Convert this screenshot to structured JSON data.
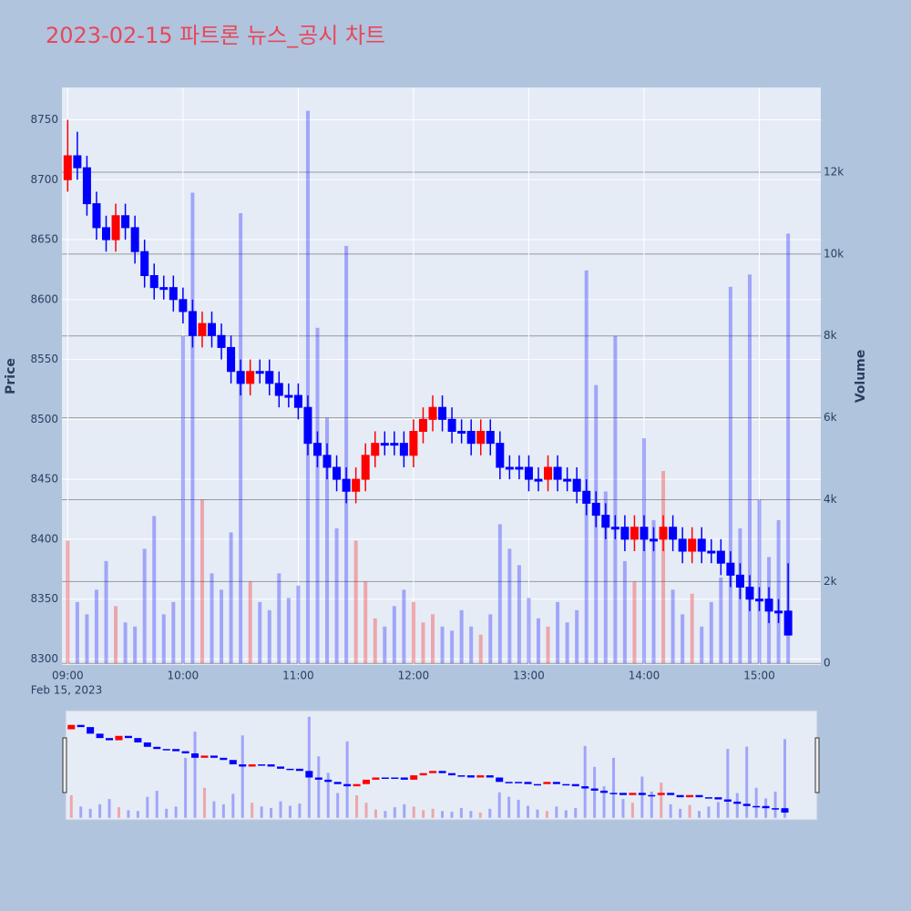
{
  "chart_data": {
    "type": "candlestick",
    "title": "2023-02-15 파트론 뉴스_공시 차트",
    "y_label": "Price",
    "y2_label": "Volume",
    "x_date_label": "Feb 15, 2023",
    "increasing_color": "#ff0000",
    "decreasing_color": "#0000ff",
    "x": [
      "09:00",
      "09:05",
      "09:10",
      "09:15",
      "09:20",
      "09:25",
      "09:30",
      "09:35",
      "09:40",
      "09:45",
      "09:50",
      "09:55",
      "10:00",
      "10:05",
      "10:10",
      "10:15",
      "10:20",
      "10:25",
      "10:30",
      "10:35",
      "10:40",
      "10:45",
      "10:50",
      "10:55",
      "11:00",
      "11:05",
      "11:10",
      "11:15",
      "11:20",
      "11:25",
      "11:30",
      "11:35",
      "11:40",
      "11:45",
      "11:50",
      "11:55",
      "12:00",
      "12:05",
      "12:10",
      "12:15",
      "12:20",
      "12:25",
      "12:30",
      "12:35",
      "12:40",
      "12:45",
      "12:50",
      "12:55",
      "13:00",
      "13:05",
      "13:10",
      "13:15",
      "13:20",
      "13:25",
      "13:30",
      "13:35",
      "13:40",
      "13:45",
      "13:50",
      "13:55",
      "14:00",
      "14:05",
      "14:10",
      "14:15",
      "14:20",
      "14:25",
      "14:30",
      "14:35",
      "14:40",
      "14:45",
      "14:50",
      "14:55",
      "15:00",
      "15:05",
      "15:10",
      "15:15"
    ],
    "open": [
      8700,
      8720,
      8710,
      8680,
      8660,
      8650,
      8670,
      8660,
      8640,
      8620,
      8610,
      8610,
      8600,
      8590,
      8570,
      8580,
      8570,
      8560,
      8540,
      8530,
      8540,
      8540,
      8530,
      8520,
      8520,
      8510,
      8480,
      8470,
      8460,
      8450,
      8440,
      8450,
      8470,
      8480,
      8480,
      8480,
      8470,
      8490,
      8500,
      8510,
      8500,
      8490,
      8490,
      8480,
      8490,
      8480,
      8460,
      8460,
      8460,
      8450,
      8450,
      8460,
      8450,
      8450,
      8440,
      8430,
      8420,
      8410,
      8410,
      8400,
      8410,
      8400,
      8400,
      8410,
      8400,
      8390,
      8400,
      8390,
      8390,
      8380,
      8370,
      8360,
      8350,
      8350,
      8340,
      8340
    ],
    "high": [
      8750,
      8740,
      8720,
      8690,
      8670,
      8680,
      8680,
      8670,
      8650,
      8630,
      8620,
      8620,
      8610,
      8600,
      8590,
      8590,
      8580,
      8570,
      8550,
      8550,
      8550,
      8550,
      8540,
      8530,
      8530,
      8520,
      8490,
      8480,
      8470,
      8460,
      8460,
      8480,
      8490,
      8490,
      8490,
      8490,
      8500,
      8510,
      8520,
      8520,
      8510,
      8500,
      8500,
      8500,
      8500,
      8490,
      8470,
      8470,
      8470,
      8460,
      8470,
      8470,
      8460,
      8460,
      8450,
      8440,
      8430,
      8420,
      8420,
      8420,
      8420,
      8410,
      8420,
      8420,
      8410,
      8410,
      8410,
      8400,
      8400,
      8390,
      8380,
      8370,
      8360,
      8360,
      8350,
      8380
    ],
    "low": [
      8690,
      8700,
      8670,
      8650,
      8640,
      8640,
      8650,
      8630,
      8610,
      8600,
      8600,
      8590,
      8580,
      8560,
      8560,
      8560,
      8550,
      8530,
      8520,
      8520,
      8530,
      8520,
      8510,
      8510,
      8500,
      8470,
      8460,
      8450,
      8440,
      8430,
      8430,
      8440,
      8460,
      8470,
      8470,
      8460,
      8460,
      8480,
      8490,
      8490,
      8480,
      8480,
      8470,
      8470,
      8470,
      8450,
      8450,
      8450,
      8440,
      8440,
      8440,
      8440,
      8440,
      8430,
      8420,
      8410,
      8400,
      8400,
      8390,
      8390,
      8390,
      8390,
      8390,
      8390,
      8380,
      8380,
      8380,
      8380,
      8370,
      8360,
      8350,
      8340,
      8340,
      8330,
      8330,
      8320
    ],
    "close": [
      8720,
      8710,
      8680,
      8660,
      8650,
      8670,
      8660,
      8640,
      8620,
      8610,
      8610,
      8600,
      8590,
      8570,
      8580,
      8570,
      8560,
      8540,
      8530,
      8540,
      8540,
      8530,
      8520,
      8520,
      8510,
      8480,
      8470,
      8460,
      8450,
      8440,
      8450,
      8470,
      8480,
      8480,
      8480,
      8470,
      8490,
      8500,
      8510,
      8500,
      8490,
      8490,
      8480,
      8490,
      8480,
      8460,
      8460,
      8460,
      8450,
      8450,
      8460,
      8450,
      8450,
      8440,
      8430,
      8420,
      8410,
      8410,
      8400,
      8410,
      8400,
      8400,
      8410,
      8400,
      8390,
      8400,
      8390,
      8390,
      8380,
      8370,
      8360,
      8350,
      8350,
      8340,
      8340,
      8320
    ],
    "volume": [
      3000,
      1500,
      1200,
      1800,
      2500,
      1400,
      1000,
      900,
      2800,
      3600,
      1200,
      1500,
      8000,
      11500,
      4000,
      2200,
      1800,
      3200,
      11000,
      2000,
      1500,
      1300,
      2200,
      1600,
      1900,
      13500,
      8200,
      6000,
      3300,
      10200,
      3000,
      2000,
      1100,
      900,
      1400,
      1800,
      1500,
      1000,
      1200,
      900,
      800,
      1300,
      900,
      700,
      1200,
      3400,
      2800,
      2400,
      1600,
      1100,
      900,
      1500,
      1000,
      1300,
      9600,
      6800,
      4200,
      8000,
      2500,
      2000,
      5500,
      3500,
      4700,
      1800,
      1200,
      1700,
      900,
      1500,
      2100,
      9200,
      3300,
      9500,
      4000,
      2600,
      3500,
      10500
    ],
    "xlim": [
      "08:57",
      "15:32"
    ],
    "xticks": [
      "09:00",
      "10:00",
      "11:00",
      "12:00",
      "13:00",
      "14:00",
      "15:00"
    ],
    "ylim": [
      8295,
      8777
    ],
    "yticks": [
      8300,
      8350,
      8400,
      8450,
      8500,
      8550,
      8600,
      8650,
      8700,
      8750
    ],
    "y2lim": [
      -40,
      14070
    ],
    "y2ticks": [
      0,
      {
        "value": 2000,
        "label": "2k"
      },
      {
        "value": 4000,
        "label": "4k"
      },
      {
        "value": 6000,
        "label": "6k"
      },
      {
        "value": 8000,
        "label": "8k"
      },
      {
        "value": 10000,
        "label": "10k"
      },
      {
        "value": 12000,
        "label": "12k"
      }
    ],
    "grid": true
  }
}
